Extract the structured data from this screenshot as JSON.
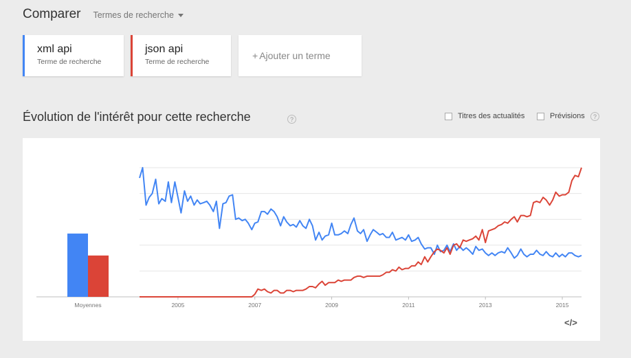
{
  "header": {
    "title": "Comparer",
    "mode_dropdown": "Termes de recherche"
  },
  "terms": [
    {
      "name": "xml api",
      "subtitle": "Terme de recherche",
      "color": "#4285f4"
    },
    {
      "name": "json api",
      "subtitle": "Terme de recherche",
      "color": "#db4437"
    }
  ],
  "add_term": {
    "plus": "+",
    "label": "Ajouter un terme"
  },
  "section": {
    "title": "Évolution de l'intérêt pour cette recherche",
    "help": "?"
  },
  "options": {
    "news_headlines": "Titres des actualités",
    "forecast": "Prévisions",
    "help": "?"
  },
  "embed_label": "</>",
  "chart_data": {
    "type": "line",
    "averages": {
      "label": "Moyennes",
      "values": [
        49,
        32
      ]
    },
    "x_ticks": [
      "2005",
      "2007",
      "2009",
      "2011",
      "2013",
      "2015"
    ],
    "ylim": [
      0,
      100
    ],
    "x_range": [
      2004.0,
      2015.5
    ],
    "series": [
      {
        "name": "xml api",
        "color": "#4285f4",
        "points": [
          [
            2004.0,
            92
          ],
          [
            2004.08,
            100
          ],
          [
            2004.17,
            71
          ],
          [
            2004.25,
            77
          ],
          [
            2004.33,
            80
          ],
          [
            2004.42,
            91
          ],
          [
            2004.5,
            72
          ],
          [
            2004.58,
            76
          ],
          [
            2004.67,
            74
          ],
          [
            2004.75,
            89
          ],
          [
            2004.83,
            73
          ],
          [
            2004.92,
            89
          ],
          [
            2005.0,
            77
          ],
          [
            2005.08,
            65
          ],
          [
            2005.17,
            82
          ],
          [
            2005.25,
            74
          ],
          [
            2005.33,
            78
          ],
          [
            2005.42,
            71
          ],
          [
            2005.5,
            75
          ],
          [
            2005.58,
            72
          ],
          [
            2005.67,
            73
          ],
          [
            2005.75,
            74
          ],
          [
            2005.83,
            71
          ],
          [
            2005.92,
            66
          ],
          [
            2006.0,
            74
          ],
          [
            2006.08,
            53
          ],
          [
            2006.17,
            72
          ],
          [
            2006.25,
            73
          ],
          [
            2006.33,
            78
          ],
          [
            2006.42,
            79
          ],
          [
            2006.5,
            60
          ],
          [
            2006.58,
            61
          ],
          [
            2006.67,
            59
          ],
          [
            2006.75,
            60
          ],
          [
            2006.83,
            57
          ],
          [
            2006.92,
            52
          ],
          [
            2007.0,
            57
          ],
          [
            2007.08,
            58
          ],
          [
            2007.17,
            66
          ],
          [
            2007.25,
            66
          ],
          [
            2007.33,
            64
          ],
          [
            2007.42,
            68
          ],
          [
            2007.5,
            66
          ],
          [
            2007.58,
            62
          ],
          [
            2007.67,
            55
          ],
          [
            2007.75,
            62
          ],
          [
            2007.83,
            58
          ],
          [
            2007.92,
            55
          ],
          [
            2008.0,
            56
          ],
          [
            2008.08,
            54
          ],
          [
            2008.17,
            59
          ],
          [
            2008.25,
            55
          ],
          [
            2008.33,
            53
          ],
          [
            2008.42,
            60
          ],
          [
            2008.5,
            55
          ],
          [
            2008.58,
            44
          ],
          [
            2008.67,
            50
          ],
          [
            2008.75,
            44
          ],
          [
            2008.83,
            47
          ],
          [
            2008.92,
            48
          ],
          [
            2009.0,
            57
          ],
          [
            2009.08,
            48
          ],
          [
            2009.17,
            48
          ],
          [
            2009.25,
            49
          ],
          [
            2009.33,
            51
          ],
          [
            2009.42,
            49
          ],
          [
            2009.5,
            56
          ],
          [
            2009.58,
            61
          ],
          [
            2009.67,
            51
          ],
          [
            2009.75,
            49
          ],
          [
            2009.83,
            52
          ],
          [
            2009.92,
            43
          ],
          [
            2010.0,
            48
          ],
          [
            2010.08,
            52
          ],
          [
            2010.17,
            50
          ],
          [
            2010.25,
            48
          ],
          [
            2010.33,
            49
          ],
          [
            2010.42,
            46
          ],
          [
            2010.5,
            46
          ],
          [
            2010.58,
            50
          ],
          [
            2010.67,
            44
          ],
          [
            2010.75,
            45
          ],
          [
            2010.83,
            46
          ],
          [
            2010.92,
            44
          ],
          [
            2011.0,
            48
          ],
          [
            2011.08,
            43
          ],
          [
            2011.17,
            44
          ],
          [
            2011.25,
            46
          ],
          [
            2011.33,
            41
          ],
          [
            2011.42,
            37
          ],
          [
            2011.5,
            38
          ],
          [
            2011.58,
            38
          ],
          [
            2011.67,
            33
          ],
          [
            2011.75,
            40
          ],
          [
            2011.83,
            35
          ],
          [
            2011.92,
            36
          ],
          [
            2012.0,
            40
          ],
          [
            2012.08,
            35
          ],
          [
            2012.17,
            41
          ],
          [
            2012.25,
            36
          ],
          [
            2012.33,
            39
          ],
          [
            2012.42,
            36
          ],
          [
            2012.5,
            38
          ],
          [
            2012.58,
            36
          ],
          [
            2012.67,
            33
          ],
          [
            2012.75,
            39
          ],
          [
            2012.83,
            36
          ],
          [
            2012.92,
            37
          ],
          [
            2013.0,
            34
          ],
          [
            2013.08,
            32
          ],
          [
            2013.17,
            34
          ],
          [
            2013.25,
            32
          ],
          [
            2013.33,
            34
          ],
          [
            2013.42,
            35
          ],
          [
            2013.5,
            34
          ],
          [
            2013.58,
            38
          ],
          [
            2013.67,
            34
          ],
          [
            2013.75,
            30
          ],
          [
            2013.83,
            32
          ],
          [
            2013.92,
            37
          ],
          [
            2014.0,
            33
          ],
          [
            2014.08,
            31
          ],
          [
            2014.17,
            33
          ],
          [
            2014.25,
            33
          ],
          [
            2014.33,
            36
          ],
          [
            2014.42,
            33
          ],
          [
            2014.5,
            32
          ],
          [
            2014.58,
            35
          ],
          [
            2014.67,
            32
          ],
          [
            2014.75,
            31
          ],
          [
            2014.83,
            34
          ],
          [
            2014.92,
            31
          ],
          [
            2015.0,
            33
          ],
          [
            2015.08,
            31
          ],
          [
            2015.17,
            34
          ],
          [
            2015.25,
            34
          ],
          [
            2015.33,
            32
          ],
          [
            2015.42,
            31
          ],
          [
            2015.5,
            32
          ]
        ]
      },
      {
        "name": "json api",
        "color": "#db4437",
        "points": [
          [
            2004.0,
            0
          ],
          [
            2006.92,
            0
          ],
          [
            2007.0,
            2
          ],
          [
            2007.08,
            6
          ],
          [
            2007.17,
            5
          ],
          [
            2007.25,
            6
          ],
          [
            2007.33,
            4
          ],
          [
            2007.42,
            3
          ],
          [
            2007.5,
            5
          ],
          [
            2007.58,
            5
          ],
          [
            2007.67,
            3
          ],
          [
            2007.75,
            3
          ],
          [
            2007.83,
            5
          ],
          [
            2007.92,
            5
          ],
          [
            2008.0,
            4
          ],
          [
            2008.08,
            5
          ],
          [
            2008.17,
            5
          ],
          [
            2008.25,
            5
          ],
          [
            2008.33,
            6
          ],
          [
            2008.42,
            8
          ],
          [
            2008.5,
            8
          ],
          [
            2008.58,
            7
          ],
          [
            2008.67,
            10
          ],
          [
            2008.75,
            12
          ],
          [
            2008.83,
            9
          ],
          [
            2008.92,
            11
          ],
          [
            2009.0,
            11
          ],
          [
            2009.08,
            11
          ],
          [
            2009.17,
            13
          ],
          [
            2009.25,
            12
          ],
          [
            2009.33,
            13
          ],
          [
            2009.42,
            13
          ],
          [
            2009.5,
            13
          ],
          [
            2009.58,
            15
          ],
          [
            2009.67,
            16
          ],
          [
            2009.75,
            16
          ],
          [
            2009.83,
            15
          ],
          [
            2009.92,
            16
          ],
          [
            2010.0,
            16
          ],
          [
            2010.08,
            16
          ],
          [
            2010.17,
            16
          ],
          [
            2010.25,
            16
          ],
          [
            2010.33,
            17
          ],
          [
            2010.42,
            19
          ],
          [
            2010.5,
            19
          ],
          [
            2010.58,
            21
          ],
          [
            2010.67,
            20
          ],
          [
            2010.75,
            23
          ],
          [
            2010.83,
            21
          ],
          [
            2010.92,
            22
          ],
          [
            2011.0,
            22
          ],
          [
            2011.08,
            24
          ],
          [
            2011.17,
            24
          ],
          [
            2011.25,
            27
          ],
          [
            2011.33,
            25
          ],
          [
            2011.42,
            31
          ],
          [
            2011.5,
            27
          ],
          [
            2011.58,
            31
          ],
          [
            2011.67,
            35
          ],
          [
            2011.75,
            37
          ],
          [
            2011.83,
            36
          ],
          [
            2011.92,
            34
          ],
          [
            2012.0,
            38
          ],
          [
            2012.08,
            33
          ],
          [
            2012.17,
            40
          ],
          [
            2012.25,
            41
          ],
          [
            2012.33,
            38
          ],
          [
            2012.42,
            44
          ],
          [
            2012.5,
            43
          ],
          [
            2012.58,
            44
          ],
          [
            2012.67,
            45
          ],
          [
            2012.75,
            47
          ],
          [
            2012.83,
            44
          ],
          [
            2012.92,
            52
          ],
          [
            2013.0,
            42
          ],
          [
            2013.08,
            51
          ],
          [
            2013.17,
            52
          ],
          [
            2013.25,
            53
          ],
          [
            2013.33,
            55
          ],
          [
            2013.42,
            56
          ],
          [
            2013.5,
            58
          ],
          [
            2013.58,
            57
          ],
          [
            2013.67,
            60
          ],
          [
            2013.75,
            62
          ],
          [
            2013.83,
            58
          ],
          [
            2013.92,
            63
          ],
          [
            2014.0,
            63
          ],
          [
            2014.08,
            62
          ],
          [
            2014.17,
            63
          ],
          [
            2014.25,
            73
          ],
          [
            2014.33,
            74
          ],
          [
            2014.42,
            73
          ],
          [
            2014.5,
            77
          ],
          [
            2014.58,
            75
          ],
          [
            2014.67,
            71
          ],
          [
            2014.75,
            75
          ],
          [
            2014.83,
            81
          ],
          [
            2014.92,
            78
          ],
          [
            2015.0,
            79
          ],
          [
            2015.08,
            79
          ],
          [
            2015.17,
            81
          ],
          [
            2015.25,
            90
          ],
          [
            2015.33,
            94
          ],
          [
            2015.42,
            93
          ],
          [
            2015.5,
            100
          ]
        ]
      }
    ]
  }
}
